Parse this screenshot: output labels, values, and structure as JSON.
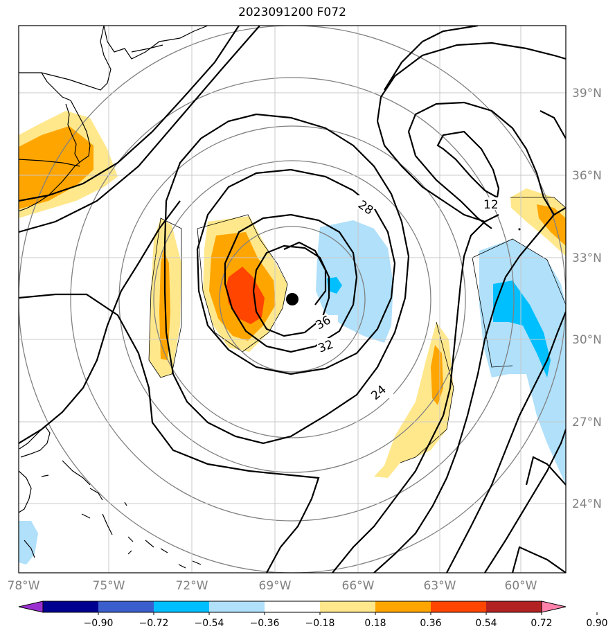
{
  "title": "2023091200 F072",
  "longitude_ticks": [
    "78°W",
    "75°W",
    "72°W",
    "69°W",
    "66°W",
    "63°W",
    "60°W"
  ],
  "latitude_ticks": [
    "39°N",
    "36°N",
    "33°N",
    "30°N",
    "27°N",
    "24°N"
  ],
  "contour_labels": [
    "28",
    "36",
    "32",
    "24",
    "12"
  ],
  "colorbar": {
    "labels": [
      "−0.90",
      "−0.72",
      "−0.54",
      "−0.36",
      "−0.18",
      "0.18",
      "0.36",
      "0.54",
      "0.72",
      "0.90"
    ],
    "colors": [
      "#9b30d0",
      "#000090",
      "#3a5fcd",
      "#00bfff",
      "#b0e0fa",
      "#ffffff",
      "#ffe88c",
      "#ffa500",
      "#ff4500",
      "#b22222",
      "#ff82ab"
    ]
  },
  "storm_center": {
    "lon": -68.3,
    "lat": 31.5
  }
}
